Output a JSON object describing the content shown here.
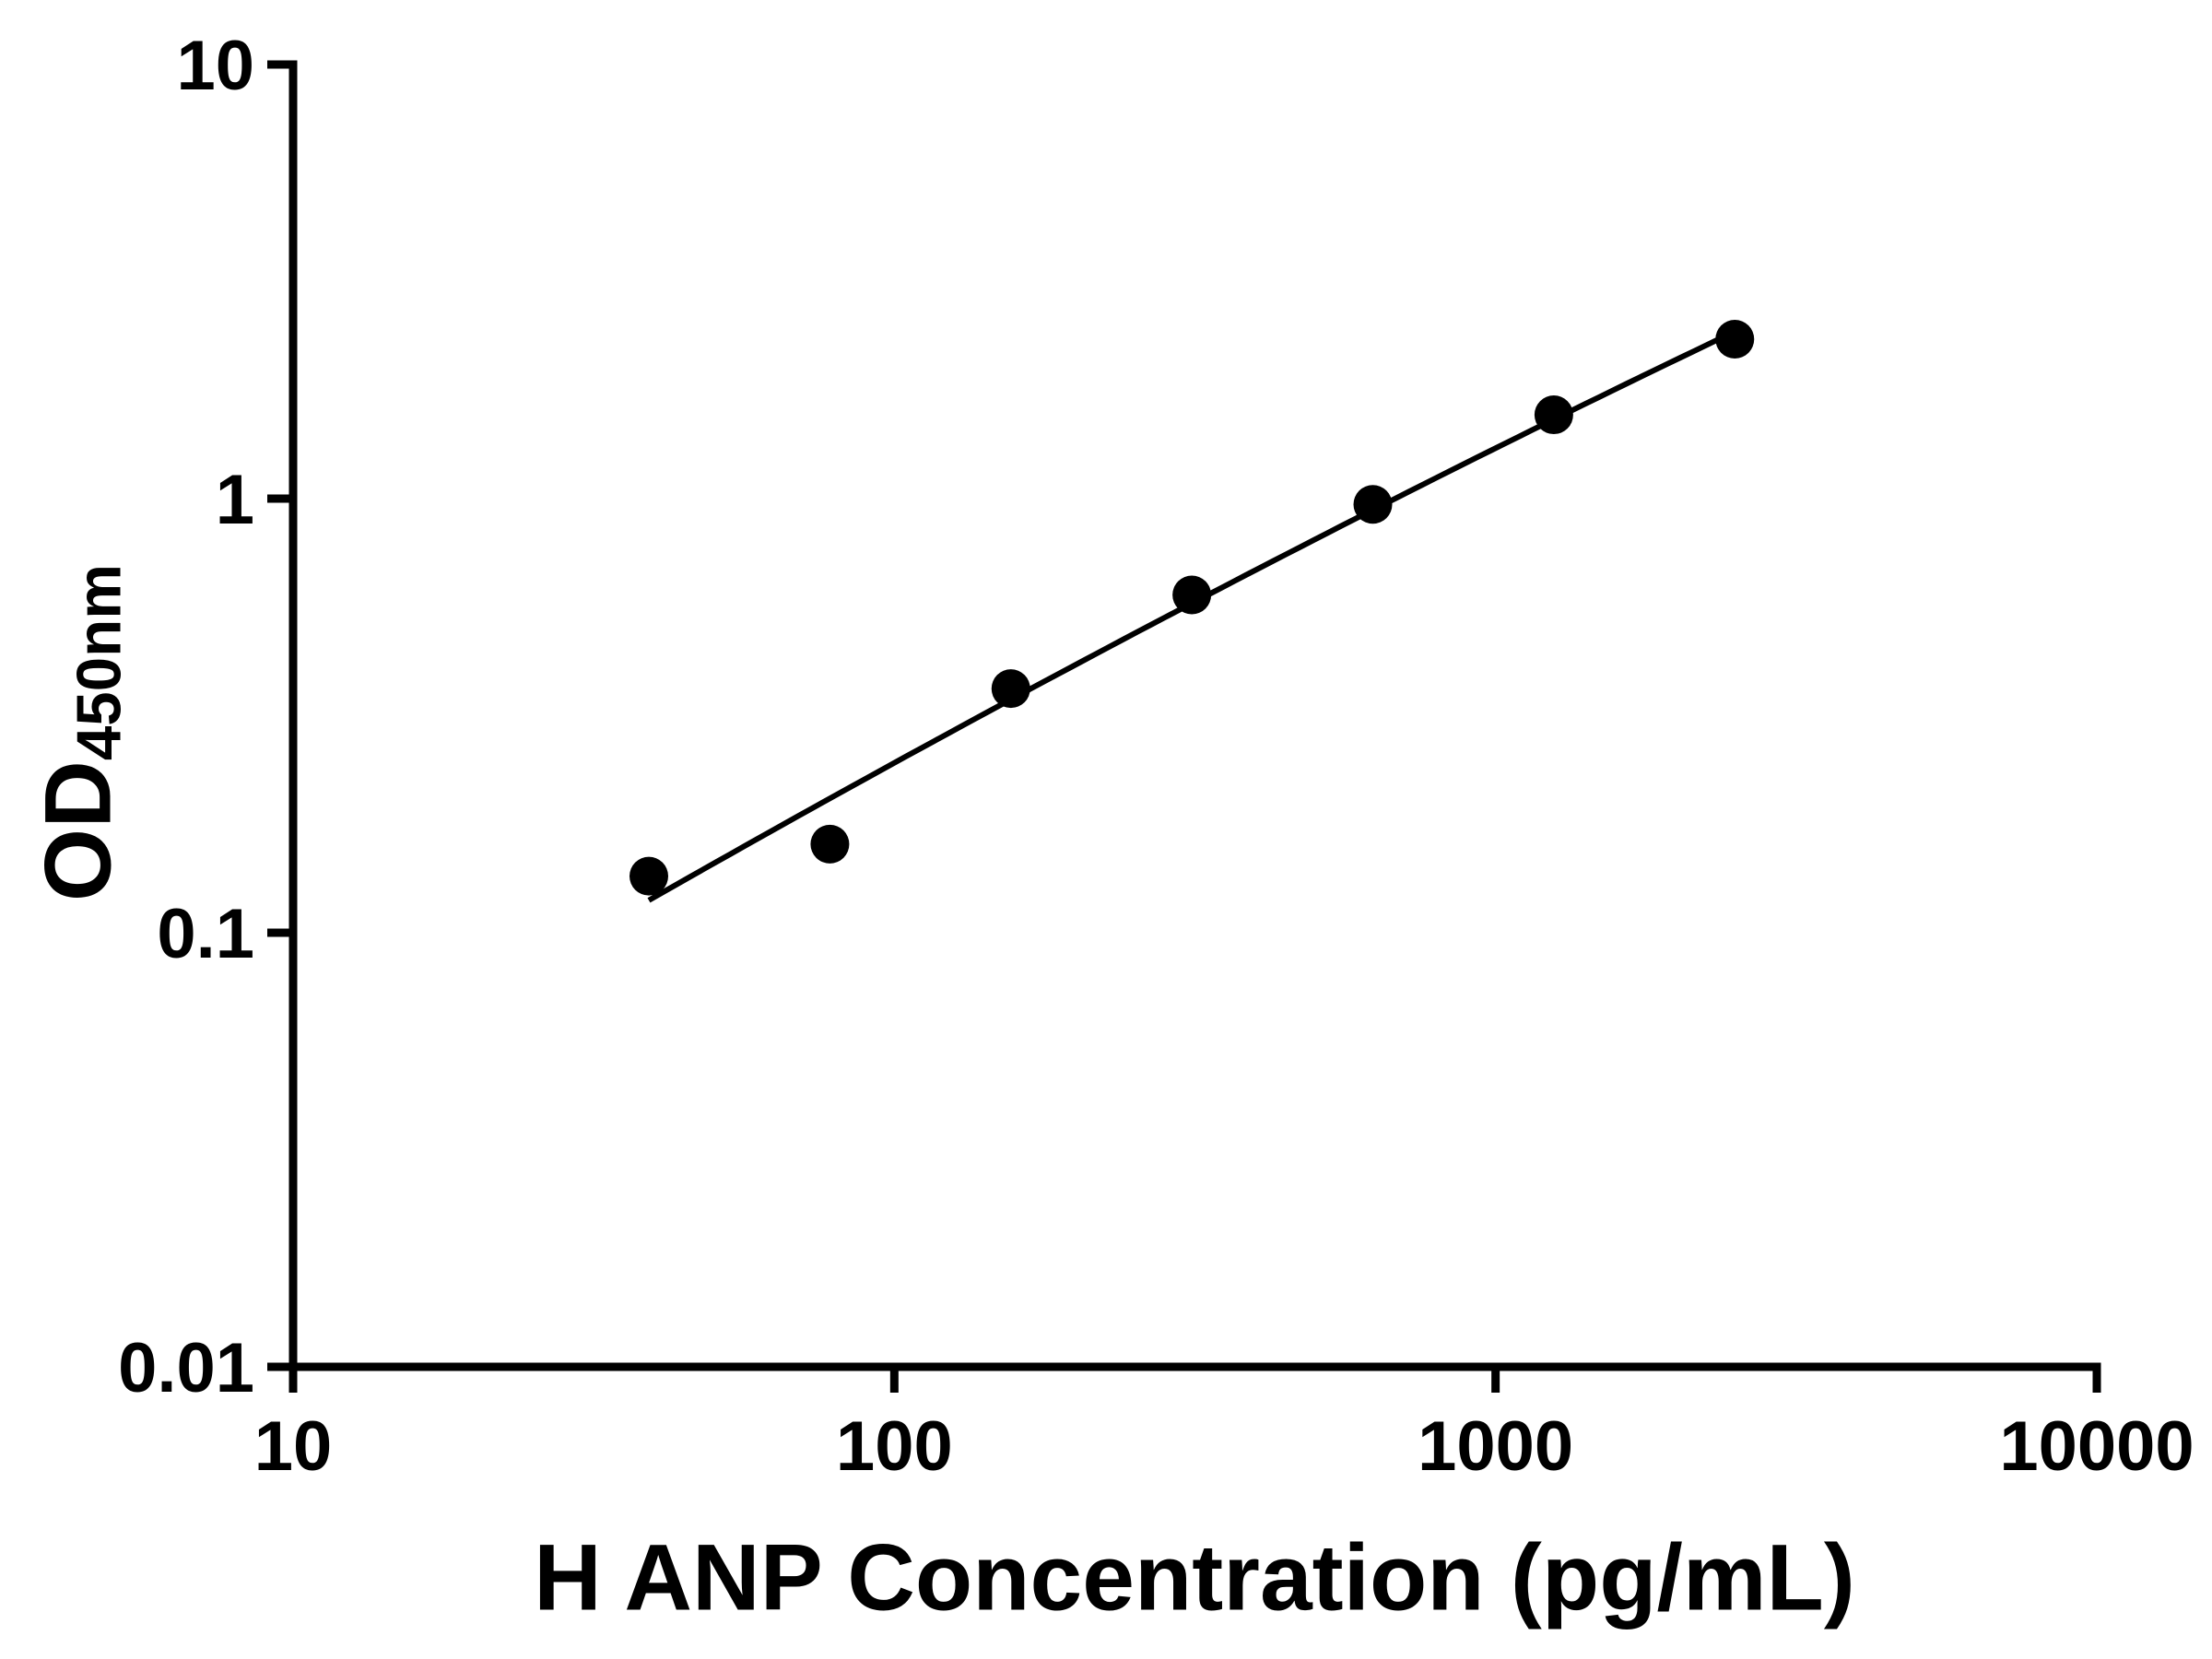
{
  "chart_data": {
    "type": "scatter",
    "title": "",
    "xlabel": "H ANP Concentration (pg/mL)",
    "ylabel": "OD",
    "ylabel_subscript": "450nm",
    "x": [
      39.06,
      78.13,
      156.25,
      312.5,
      625,
      1250,
      2500
    ],
    "y": [
      0.135,
      0.16,
      0.365,
      0.6,
      0.97,
      1.56,
      2.33
    ],
    "xscale": "log",
    "yscale": "log",
    "xlim": [
      10,
      10000
    ],
    "ylim": [
      0.01,
      10
    ],
    "x_ticks": [
      10,
      100,
      1000,
      10000
    ],
    "x_tick_labels": [
      "10",
      "100",
      "1000",
      "10000"
    ],
    "y_ticks": [
      0.01,
      0.1,
      1,
      10
    ],
    "y_tick_labels": [
      "0.01",
      "0.1",
      "1",
      "10"
    ],
    "grid": false,
    "legend": "none",
    "marker_color": "#000000",
    "line_color": "#000000",
    "axis_color": "#000000",
    "curve_fit": "smooth standard-curve fit through points"
  }
}
